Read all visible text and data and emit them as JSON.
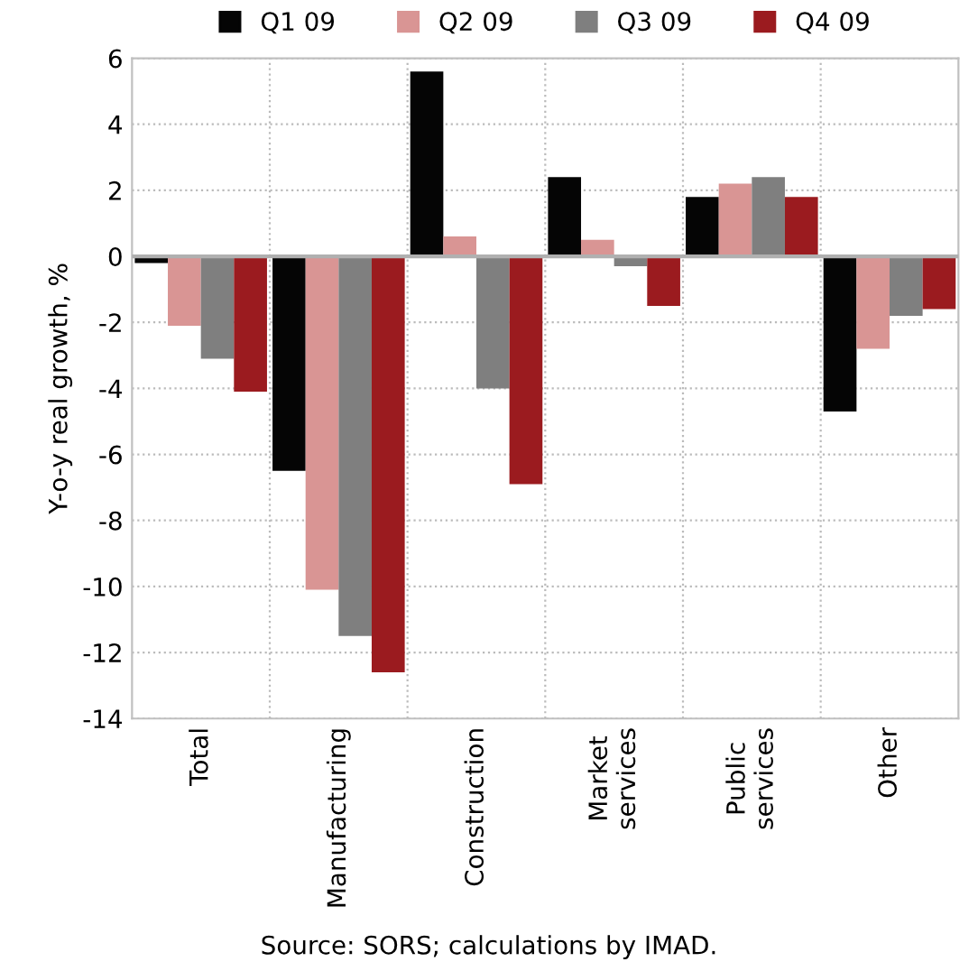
{
  "chart_data": {
    "type": "bar",
    "ylabel": "Y-o-y real growth, %",
    "categories": [
      "Total",
      "Manufacturing",
      "Construction",
      "Market\nservices",
      "Public\nservices",
      "Other"
    ],
    "series": [
      {
        "name": "Q1 09",
        "color": "#050505",
        "values": [
          -0.2,
          -6.5,
          5.6,
          2.4,
          1.8,
          -4.7
        ]
      },
      {
        "name": "Q2 09",
        "color": "#d99594",
        "values": [
          -2.1,
          -10.1,
          0.6,
          0.5,
          2.2,
          -2.8
        ]
      },
      {
        "name": "Q3 09",
        "color": "#7f7f7f",
        "values": [
          -3.1,
          -11.5,
          -4.0,
          -0.3,
          2.4,
          -1.8
        ]
      },
      {
        "name": "Q4 09",
        "color": "#9b1b1f",
        "values": [
          -4.1,
          -12.6,
          -6.9,
          -1.5,
          1.8,
          -1.6
        ]
      }
    ],
    "ylim": [
      -14,
      6
    ],
    "yticks": [
      -14,
      -12,
      -10,
      -8,
      -6,
      -4,
      -2,
      0,
      2,
      4,
      6
    ],
    "grid": true,
    "legend": "top",
    "annotations": [
      "Source: SORS; calculations by IMAD."
    ]
  }
}
